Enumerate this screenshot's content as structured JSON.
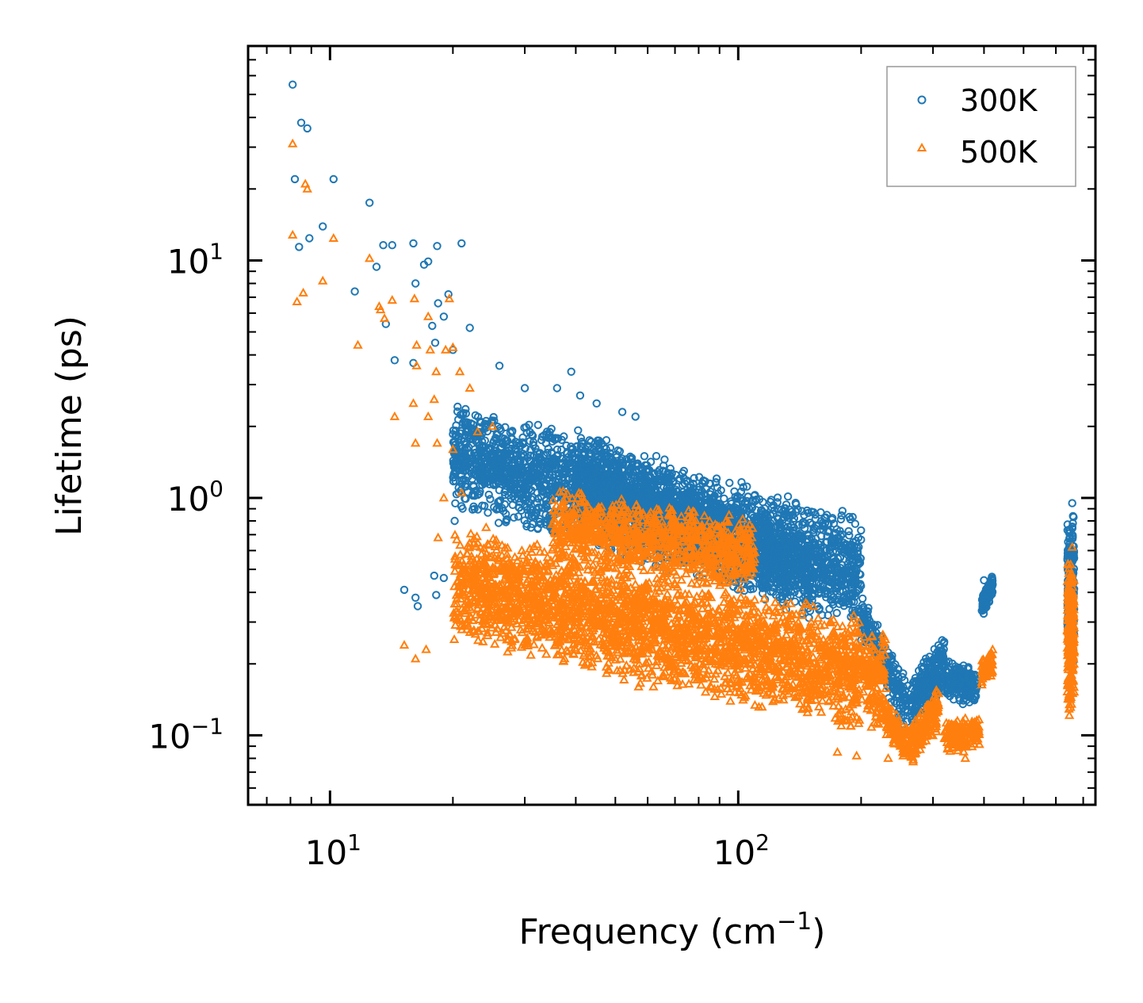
{
  "chart_data": {
    "type": "scatter",
    "xscale": "log",
    "yscale": "log",
    "xlim": [
      6.3,
      750
    ],
    "ylim": [
      0.051,
      80
    ],
    "xlabel": {
      "text": "Frequency (cm",
      "sup": "−1",
      "suffix": ")"
    },
    "ylabel": "Lifetime (ps)",
    "xticks": [
      {
        "value": 10,
        "base": "10",
        "exp": "1"
      },
      {
        "value": 100,
        "base": "10",
        "exp": "2"
      }
    ],
    "yticks": [
      {
        "value": 0.1,
        "base": "10",
        "exp": "−1"
      },
      {
        "value": 1,
        "base": "10",
        "exp": "0"
      },
      {
        "value": 10,
        "base": "10",
        "exp": "1"
      }
    ],
    "legend": {
      "position": "top-right"
    },
    "series": [
      {
        "name": "300K",
        "marker": "circle",
        "color": "#1f77b4",
        "highlights": [
          [
            8.1,
            55
          ],
          [
            8.5,
            38
          ],
          [
            8.8,
            36
          ],
          [
            8.2,
            22
          ],
          [
            10.2,
            22
          ],
          [
            12.5,
            17.5
          ],
          [
            9.6,
            13.9
          ],
          [
            8.4,
            11.4
          ],
          [
            8.9,
            12.4
          ],
          [
            13.5,
            11.6
          ],
          [
            14.2,
            11.6
          ],
          [
            16,
            11.8
          ],
          [
            18.3,
            11.5
          ],
          [
            21,
            11.8
          ],
          [
            17.4,
            9.9
          ],
          [
            17,
            9.6
          ],
          [
            13,
            9.4
          ],
          [
            11.5,
            7.4
          ],
          [
            16.2,
            8
          ],
          [
            19.5,
            7.2
          ],
          [
            18.4,
            6.6
          ],
          [
            19,
            5.8
          ],
          [
            17.8,
            5.3
          ],
          [
            22,
            5.2
          ],
          [
            13.7,
            5.4
          ],
          [
            18.1,
            4.5
          ],
          [
            20,
            4.2
          ],
          [
            14.4,
            3.8
          ],
          [
            16,
            3.7
          ],
          [
            26,
            3.6
          ],
          [
            39,
            3.4
          ],
          [
            30,
            2.9
          ],
          [
            36,
            2.9
          ],
          [
            52,
            2.3
          ],
          [
            56,
            2.2
          ],
          [
            41,
            2.7
          ],
          [
            45,
            2.5
          ],
          [
            63,
            1.5
          ],
          [
            66,
            1.45
          ],
          [
            85,
            1.15
          ],
          [
            102,
            0.97
          ],
          [
            110,
            0.97
          ],
          [
            130,
            0.85
          ],
          [
            137,
            0.75
          ],
          [
            150,
            0.6
          ],
          [
            185,
            0.48
          ],
          [
            192,
            0.43
          ],
          [
            400,
            0.45
          ],
          [
            410,
            0.43
          ],
          [
            658,
            0.95
          ],
          [
            650,
            0.65
          ],
          [
            15.2,
            0.41
          ],
          [
            16.2,
            0.38
          ],
          [
            16.4,
            0.35
          ],
          [
            18.2,
            0.39
          ],
          [
            18,
            0.47
          ],
          [
            19,
            0.46
          ],
          [
            20.2,
            0.8
          ],
          [
            21.5,
            0.99
          ]
        ],
        "clusters": [
          {
            "x": [
              20,
              200
            ],
            "y0": 1.6,
            "y1": 0.5,
            "spread": [
              0.55,
              1.7
            ],
            "count": 2800
          },
          {
            "x": [
              40,
              150
            ],
            "y0": 1.4,
            "y1": 0.5,
            "spread": [
              0.6,
              1.45
            ],
            "count": 1100
          },
          {
            "x": [
              200,
              260
            ],
            "y0": 0.33,
            "y1": 0.13,
            "spread": [
              0.75,
              1.3
            ],
            "count": 200
          },
          {
            "x": [
              265,
              320
            ],
            "y0": 0.15,
            "y1": 0.22,
            "spread": [
              0.7,
              1.2
            ],
            "count": 260
          },
          {
            "x": [
              320,
              385
            ],
            "y0": 0.18,
            "y1": 0.16,
            "spread": [
              0.8,
              1.2
            ],
            "count": 180
          },
          {
            "x": [
              395,
              420
            ],
            "y0": 0.35,
            "y1": 0.44,
            "spread": [
              0.88,
              1.1
            ],
            "count": 130
          },
          {
            "x": [
              640,
              665
            ],
            "y0": 0.55,
            "y1": 0.55,
            "spread": [
              0.35,
              1.65
            ],
            "count": 260
          }
        ]
      },
      {
        "name": "500K",
        "marker": "triangle",
        "color": "#ff7f0e",
        "highlights": [
          [
            8.1,
            31
          ],
          [
            8.7,
            21
          ],
          [
            8.8,
            20
          ],
          [
            8.1,
            12.8
          ],
          [
            10.2,
            12.4
          ],
          [
            12.5,
            10.2
          ],
          [
            9.6,
            8.2
          ],
          [
            8.6,
            7.3
          ],
          [
            8.3,
            6.7
          ],
          [
            13.2,
            6.4
          ],
          [
            13.6,
            5.7
          ],
          [
            14.2,
            6.8
          ],
          [
            13.3,
            6.2
          ],
          [
            11.7,
            4.4
          ],
          [
            16.1,
            6.9
          ],
          [
            17.4,
            5.8
          ],
          [
            19.6,
            6.9
          ],
          [
            16.3,
            4.4
          ],
          [
            17.6,
            4.2
          ],
          [
            19.2,
            4.2
          ],
          [
            20,
            4.3
          ],
          [
            16.3,
            3.6
          ],
          [
            18.2,
            3.4
          ],
          [
            20.8,
            3.4
          ],
          [
            14.4,
            2.2
          ],
          [
            22,
            2.9
          ],
          [
            16,
            2.5
          ],
          [
            18,
            2.6
          ],
          [
            17.4,
            2.2
          ],
          [
            16.2,
            1.7
          ],
          [
            18.3,
            1.7
          ],
          [
            20,
            1.6
          ],
          [
            23,
            1.9
          ],
          [
            25,
            2.0
          ],
          [
            19,
            1.0
          ],
          [
            21,
            1.05
          ],
          [
            18.4,
            0.68
          ],
          [
            15.2,
            0.24
          ],
          [
            16.2,
            0.21
          ],
          [
            17.2,
            0.23
          ],
          [
            57,
            0.16
          ],
          [
            62,
            0.16
          ],
          [
            175,
            0.085
          ],
          [
            195,
            0.082
          ],
          [
            233,
            0.08
          ],
          [
            360,
            0.08
          ],
          [
            658,
            0.62
          ]
        ],
        "clusters": [
          {
            "x": [
              20,
              230
            ],
            "y0": 0.45,
            "y1": 0.17,
            "spread": [
              0.55,
              1.8
            ],
            "count": 2800
          },
          {
            "x": [
              35,
              110
            ],
            "y0": 0.75,
            "y1": 0.55,
            "spread": [
              0.7,
              1.5
            ],
            "count": 900
          },
          {
            "x": [
              230,
              260
            ],
            "y0": 0.12,
            "y1": 0.09,
            "spread": [
              0.82,
              1.2
            ],
            "count": 120
          },
          {
            "x": [
              265,
              310
            ],
            "y0": 0.09,
            "y1": 0.13,
            "spread": [
              0.82,
              1.25
            ],
            "count": 200
          },
          {
            "x": [
              320,
              390
            ],
            "y0": 0.1,
            "y1": 0.11,
            "spread": [
              0.8,
              1.15
            ],
            "count": 160
          },
          {
            "x": [
              395,
              420
            ],
            "y0": 0.19,
            "y1": 0.21,
            "spread": [
              0.85,
              1.1
            ],
            "count": 80
          },
          {
            "x": [
              640,
              665
            ],
            "y0": 0.3,
            "y1": 0.3,
            "spread": [
              0.4,
              1.9
            ],
            "count": 260
          }
        ]
      }
    ]
  }
}
